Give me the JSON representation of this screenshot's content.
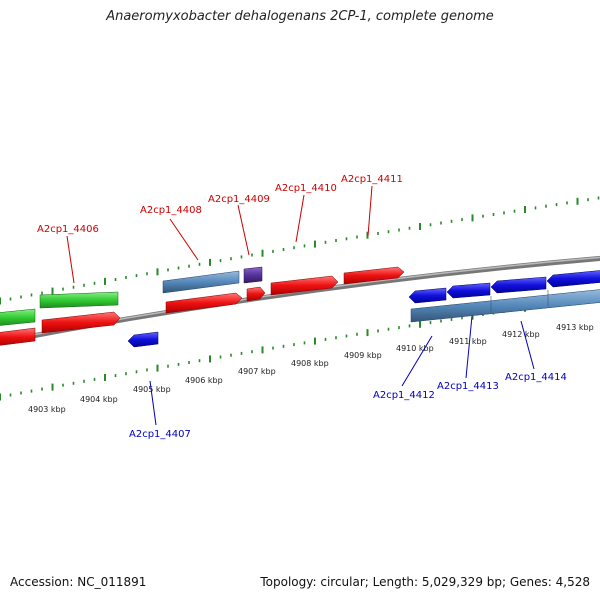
{
  "title": "Anaeromyxobacter dehalogenans 2CP-1, complete genome",
  "footer": {
    "accession": "Accession: NC_011891",
    "summary": "Topology: circular; Length: 5,029,329 bp; Genes: 4,528"
  },
  "colors": {
    "tick": "#2a8a2a",
    "label_red": "#cc0000",
    "label_blue": "#0000bb",
    "backbone": "#888888",
    "gene_green": "#33cc33",
    "gene_red": "#ee1111",
    "gene_blue": "#1111dd",
    "gene_steel": "#5588bb",
    "gene_purple": "#553399"
  },
  "scale_labels": [
    "4903 kbp",
    "4904 kbp",
    "4905 kbp",
    "4906 kbp",
    "4907 kbp",
    "4908 kbp",
    "4909 kbp",
    "4910 kbp",
    "4911 kbp",
    "4912 kbp",
    "4913 kbp"
  ],
  "gene_labels": {
    "a4406": "A2cp1_4406",
    "a4407": "A2cp1_4407",
    "a4408": "A2cp1_4408",
    "a4409": "A2cp1_4409",
    "a4410": "A2cp1_4410",
    "a4411": "A2cp1_4411",
    "a4412": "A2cp1_4412",
    "a4413": "A2cp1_4413",
    "a4414": "A2cp1_4414"
  }
}
